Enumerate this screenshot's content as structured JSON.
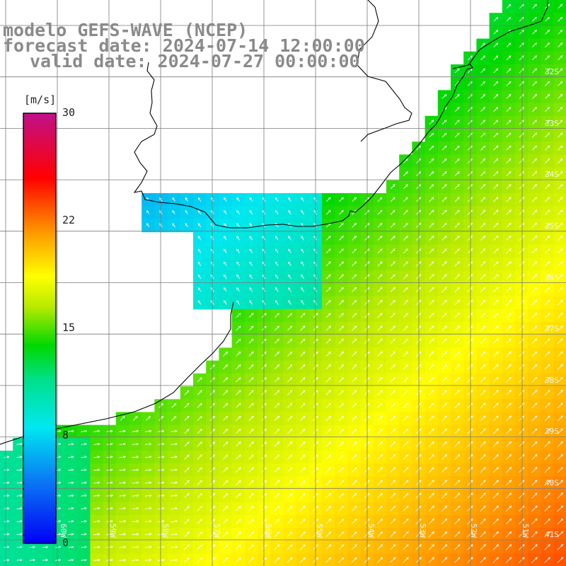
{
  "title": {
    "line1": "modelo GEFS-WAVE (NCEP)",
    "line2": "forecast date: 2024-07-14 12:00:00",
    "line3": "valid date: 2024-07-27 00:00:00"
  },
  "colorbar": {
    "unit": "[m/s]",
    "min": 0,
    "max": 30,
    "ticks": [
      "30",
      "22",
      "15",
      "8",
      "0"
    ],
    "tick_values": [
      30,
      22,
      15,
      8,
      0
    ]
  },
  "lat_labels": [
    "32S",
    "33S",
    "34S",
    "35S",
    "36S",
    "37S",
    "38S",
    "39S",
    "40S",
    "41S"
  ],
  "lon_labels": [
    "60W",
    "59W",
    "58W",
    "57W",
    "56W",
    "55W",
    "54W",
    "53W",
    "52W",
    "51W"
  ],
  "colors": {
    "land": "#ffffff",
    "grid": "#7a7a7a",
    "coast": "#000000",
    "arrow": "#ffffff",
    "title_text": "#8a8a8a"
  },
  "field": {
    "quantity": "wind speed",
    "arrow_style": "white vectors"
  }
}
